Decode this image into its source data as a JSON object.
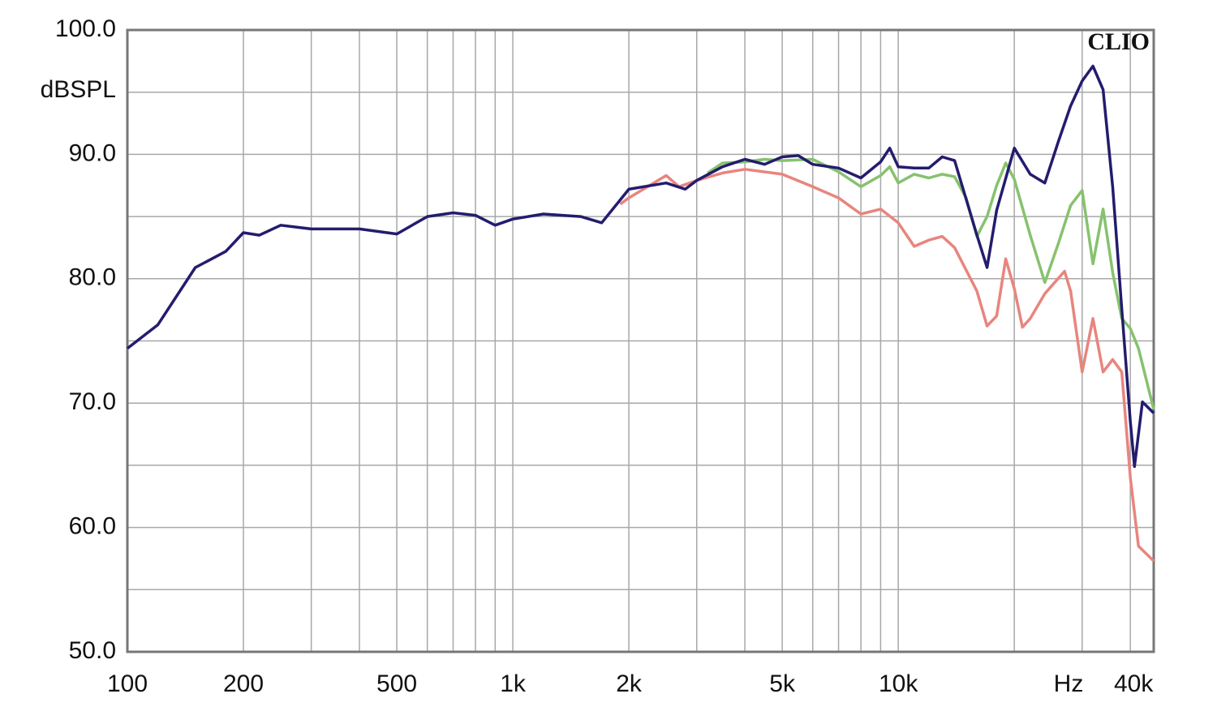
{
  "chart_data": {
    "type": "line",
    "watermark": "CLIO",
    "ylabel": "dBSPL",
    "xlabel": "Hz",
    "xscale": "log",
    "xlim": [
      100,
      46000
    ],
    "ylim": [
      50,
      100
    ],
    "yticks": [
      {
        "value": 50,
        "label": "50.0"
      },
      {
        "value": 60,
        "label": "60.0"
      },
      {
        "value": 70,
        "label": "70.0"
      },
      {
        "value": 80,
        "label": "80.0"
      },
      {
        "value": 90,
        "label": "90.0"
      },
      {
        "value": 100,
        "label": "100.0"
      }
    ],
    "minor_yticks": [
      55,
      65,
      75,
      85,
      95
    ],
    "xticks": [
      100,
      200,
      500,
      {
        "value": 1000,
        "label": "1k"
      },
      {
        "value": 2000,
        "label": "2k"
      },
      {
        "value": 5000,
        "label": "5k"
      },
      {
        "value": 10000,
        "label": "10k"
      },
      {
        "value": 40000,
        "label": "40k"
      }
    ],
    "minor_xticks": [
      300,
      400,
      600,
      700,
      800,
      900,
      3000,
      4000,
      6000,
      7000,
      8000,
      9000,
      20000,
      30000
    ],
    "grid": true,
    "series": [
      {
        "color": "#e8857e",
        "x": [
          1900,
          2000,
          2500,
          2700,
          3000,
          3500,
          4000,
          5000,
          6000,
          7000,
          8000,
          9000,
          10000,
          11000,
          12000,
          13000,
          14000,
          16000,
          17000,
          18000,
          19000,
          20000,
          21000,
          22000,
          24000,
          27000,
          28000,
          30000,
          32000,
          34000,
          36000,
          38000,
          40000,
          42000,
          46000
        ],
        "values": [
          86.0,
          86.5,
          88.3,
          87.4,
          87.9,
          88.5,
          88.8,
          88.4,
          87.4,
          86.5,
          85.2,
          85.6,
          84.5,
          82.6,
          83.1,
          83.4,
          82.5,
          79.0,
          76.2,
          77.0,
          81.6,
          79.2,
          76.1,
          76.8,
          78.8,
          80.6,
          79.0,
          72.5,
          76.8,
          72.5,
          73.5,
          72.5,
          64.0,
          58.5,
          57.3
        ]
      },
      {
        "color": "#86c26e",
        "x": [
          3200,
          3500,
          4000,
          4500,
          5000,
          6000,
          7000,
          8000,
          9000,
          9500,
          10000,
          11000,
          12000,
          13000,
          14000,
          15000,
          16000,
          17000,
          18000,
          19000,
          20000,
          22000,
          24000,
          26000,
          28000,
          30000,
          32000,
          34000,
          36000,
          38000,
          40000,
          42000,
          46000
        ],
        "values": [
          88.5,
          89.3,
          89.4,
          89.6,
          89.5,
          89.6,
          88.6,
          87.4,
          88.3,
          89.0,
          87.7,
          88.4,
          88.1,
          88.4,
          88.2,
          86.5,
          83.4,
          85.0,
          87.5,
          89.3,
          88.0,
          83.5,
          79.7,
          82.8,
          85.9,
          87.1,
          81.2,
          85.6,
          80.5,
          76.8,
          76.0,
          74.4,
          69.5
        ]
      },
      {
        "color": "#231c6e",
        "x": [
          100,
          120,
          150,
          180,
          200,
          220,
          250,
          300,
          400,
          500,
          600,
          700,
          800,
          900,
          1000,
          1200,
          1500,
          1700,
          2000,
          2500,
          2800,
          3000,
          3500,
          4000,
          4500,
          5000,
          5500,
          6000,
          7000,
          8000,
          9000,
          9500,
          10000,
          11000,
          12000,
          13000,
          14000,
          16000,
          17000,
          18000,
          20000,
          22000,
          24000,
          26000,
          28000,
          30000,
          32000,
          34000,
          36000,
          38000,
          40000,
          41000,
          43000,
          46000
        ],
        "values": [
          74.4,
          76.3,
          80.9,
          82.2,
          83.7,
          83.5,
          84.3,
          84.0,
          84.0,
          83.6,
          85.0,
          85.3,
          85.1,
          84.3,
          84.8,
          85.2,
          85.0,
          84.5,
          87.2,
          87.7,
          87.2,
          87.9,
          89.0,
          89.6,
          89.2,
          89.8,
          89.9,
          89.2,
          88.9,
          88.1,
          89.4,
          90.5,
          89.0,
          88.9,
          88.9,
          89.8,
          89.5,
          83.5,
          80.9,
          85.5,
          90.5,
          88.4,
          87.7,
          91.0,
          93.9,
          95.9,
          97.1,
          95.2,
          87.4,
          77.6,
          68.5,
          64.9,
          70.1,
          69.2
        ]
      }
    ]
  }
}
